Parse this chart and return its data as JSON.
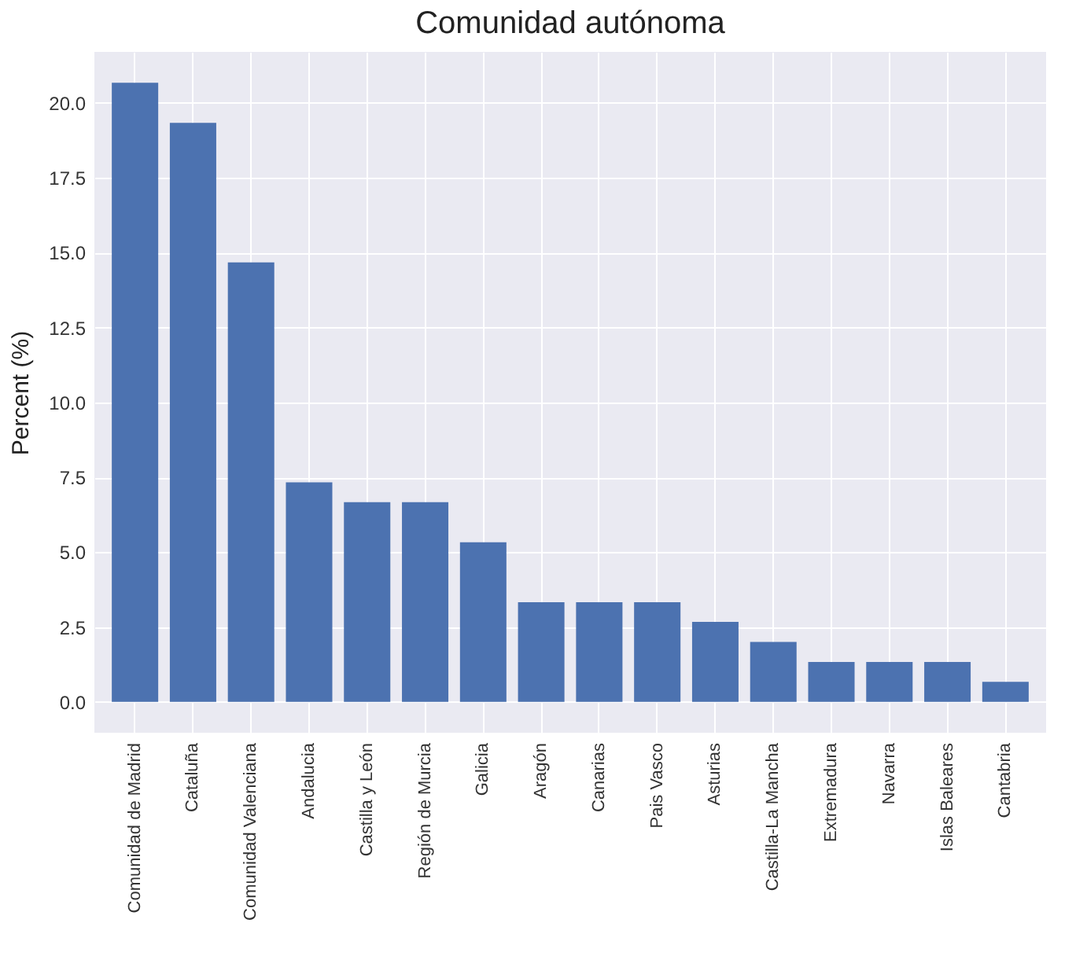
{
  "chart_data": {
    "type": "bar",
    "title": "Comunidad autónoma",
    "ylabel": "Percent (%)",
    "categories": [
      "Comunidad de Madrid",
      "Cataluña",
      "Comunidad Valenciana",
      "Andalucia",
      "Castilla y León",
      "Región de Murcia",
      "Galicia",
      "Aragón",
      "Canarias",
      "Pais Vasco",
      "Asturias",
      "Castilla-La Mancha",
      "Extremadura",
      "Navarra",
      "Islas Baleares",
      "Cantabria"
    ],
    "values": [
      20.67,
      19.33,
      14.67,
      7.33,
      6.67,
      6.67,
      5.33,
      3.33,
      3.33,
      3.33,
      2.67,
      2.0,
      1.33,
      1.33,
      1.33,
      0.67
    ],
    "color": "#4c72b0",
    "ylim": [
      -1.03,
      21.7
    ],
    "yticks": [
      {
        "value": 0,
        "label": "0.0"
      },
      2.5,
      {
        "value": 5,
        "label": "5.0"
      },
      7.5,
      {
        "value": 10,
        "label": "10.0"
      },
      12.5,
      {
        "value": 15,
        "label": "15.0"
      },
      17.5,
      {
        "value": 20,
        "label": "20.0"
      }
    ],
    "grid": true
  }
}
